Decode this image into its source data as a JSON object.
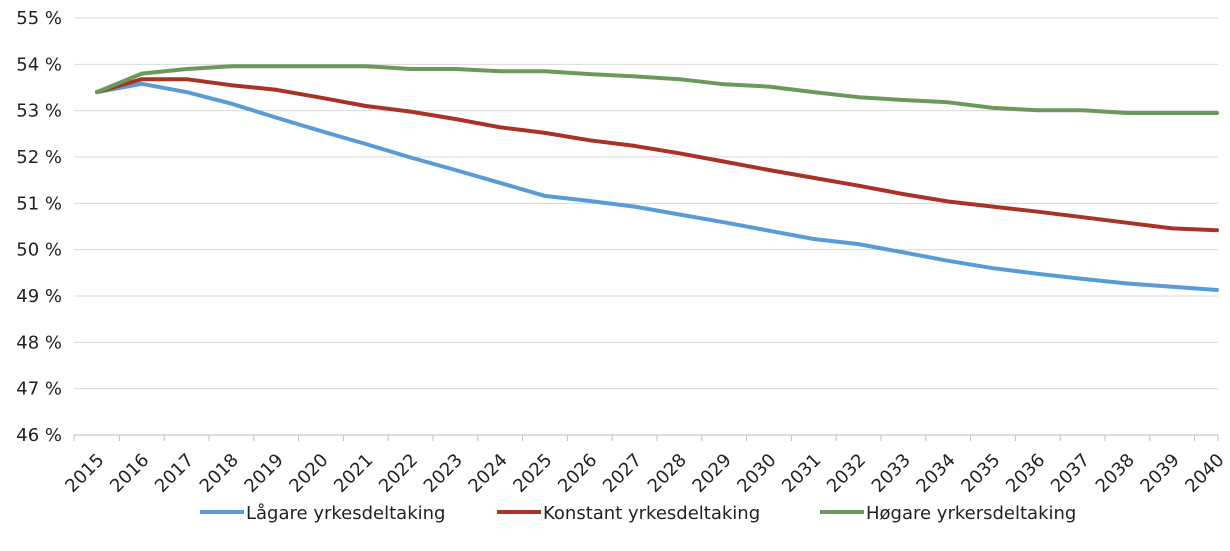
{
  "chart_data": {
    "type": "line",
    "title": "",
    "xlabel": "",
    "ylabel": "",
    "x": [
      "2015",
      "2016",
      "2017",
      "2018",
      "2019",
      "2020",
      "2021",
      "2022",
      "2023",
      "2024",
      "2025",
      "2026",
      "2027",
      "2028",
      "2029",
      "2030",
      "2031",
      "2032",
      "2033",
      "2034",
      "2035",
      "2036",
      "2037",
      "2038",
      "2039",
      "2040"
    ],
    "ylim": [
      46,
      55
    ],
    "y_tick_step": 1,
    "y_tick_labels": [
      "46 %",
      "47 %",
      "48 %",
      "49 %",
      "50 %",
      "51 %",
      "52 %",
      "53 %",
      "54 %",
      "55 %"
    ],
    "grid": "horizontal",
    "legend_position": "bottom",
    "series": [
      {
        "name": "Lågare yrkesdeltaking",
        "color": "#5b9bd5",
        "values": [
          53.4,
          53.58,
          53.4,
          53.15,
          52.85,
          52.56,
          52.28,
          51.99,
          51.72,
          51.44,
          51.16,
          51.05,
          50.93,
          50.76,
          50.59,
          50.41,
          50.23,
          50.12,
          49.94,
          49.76,
          49.6,
          49.48,
          49.37,
          49.27,
          49.2,
          49.13
        ]
      },
      {
        "name": "Konstant yrkesdeltaking",
        "color": "#a93226",
        "values": [
          53.4,
          53.68,
          53.68,
          53.55,
          53.45,
          53.28,
          53.1,
          52.98,
          52.82,
          52.64,
          52.52,
          52.36,
          52.24,
          52.08,
          51.9,
          51.72,
          51.55,
          51.38,
          51.2,
          51.04,
          50.93,
          50.82,
          50.7,
          50.58,
          50.46,
          50.42
        ]
      },
      {
        "name": "Høgare yrkersdeltaking",
        "color": "#6a9a5b",
        "values": [
          53.4,
          53.8,
          53.9,
          53.96,
          53.96,
          53.96,
          53.96,
          53.9,
          53.9,
          53.85,
          53.85,
          53.79,
          53.74,
          53.68,
          53.57,
          53.52,
          53.4,
          53.29,
          53.23,
          53.18,
          53.06,
          53.01,
          53.01,
          52.95,
          52.95,
          52.95
        ]
      }
    ]
  }
}
